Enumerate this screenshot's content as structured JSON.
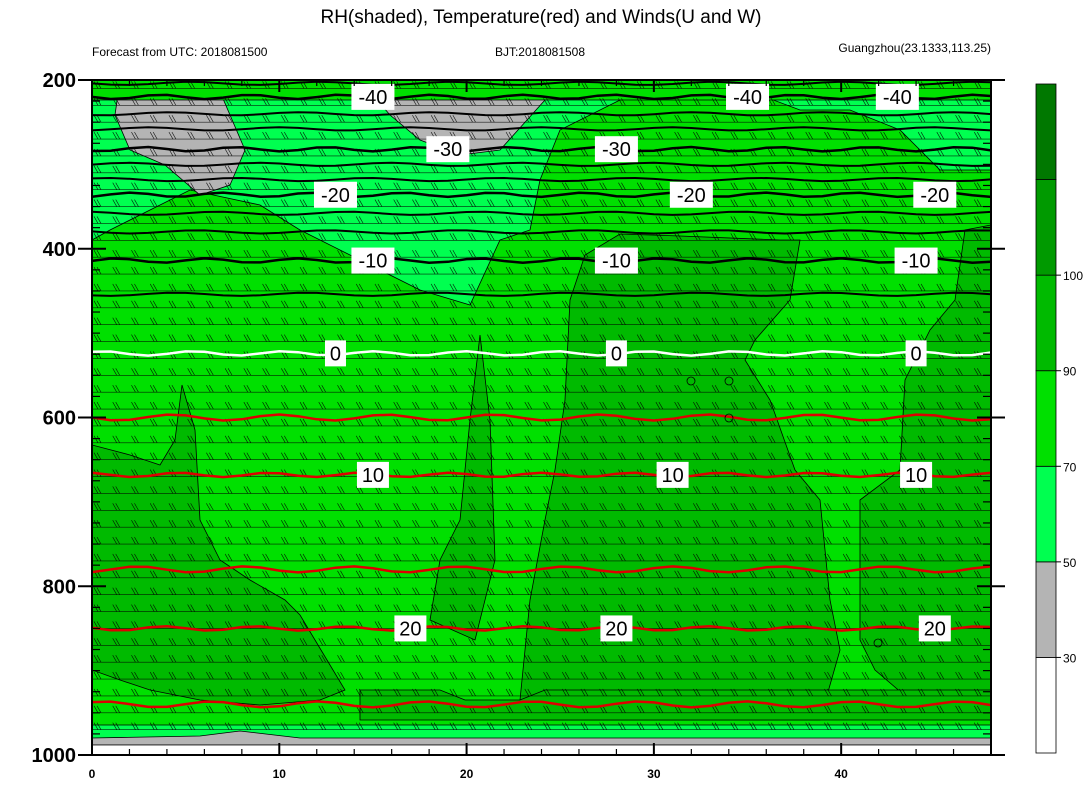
{
  "chart_data": {
    "type": "contour",
    "title": "RH(shaded), Temperature(red) and Winds(U and W)",
    "subtitle_left": "Forecast from UTC: 2018081500",
    "subtitle_center": "BJT:2018081508",
    "subtitle_right": "Guangzhou(23.1333,113.25)",
    "xlim": [
      0,
      48
    ],
    "ylim": [
      1000,
      200
    ],
    "x_ticks": [
      0,
      10,
      20,
      30,
      40
    ],
    "y_ticks": [
      200,
      400,
      600,
      800,
      1000
    ],
    "colorbar": {
      "levels": [
        30,
        50,
        70,
        90,
        100
      ],
      "colors": [
        "#ffffff",
        "#b4b4b4",
        "#00ff50",
        "#00e000",
        "#00ba00",
        "#009a00",
        "#007800"
      ]
    },
    "temperature_contours": [
      {
        "value": -40,
        "label": "-40",
        "pressure": 220,
        "color": "#000000"
      },
      {
        "value": -30,
        "label": "-30",
        "pressure": 282,
        "color": "#000000"
      },
      {
        "value": -20,
        "label": "-20",
        "pressure": 336,
        "color": "#000000"
      },
      {
        "value": -10,
        "label": "-10",
        "pressure": 414,
        "color": "#000000"
      },
      {
        "value": 0,
        "label": "0",
        "pressure": 524,
        "color": "#ffffff"
      },
      {
        "value": 10,
        "label": "10",
        "pressure": 668,
        "color": "#dd0000"
      },
      {
        "value": 20,
        "label": "20",
        "pressure": 850,
        "color": "#dd0000"
      }
    ],
    "contour_label_x": {
      "-40": [
        15,
        35,
        43
      ],
      "-30": [
        19,
        28
      ],
      "-20": [
        13,
        32,
        45
      ],
      "-10": [
        15,
        28,
        44
      ],
      "0": [
        13,
        28,
        44
      ],
      "10": [
        15,
        31,
        44
      ],
      "20": [
        17,
        28,
        45
      ]
    },
    "grid": false,
    "legend": "right"
  }
}
